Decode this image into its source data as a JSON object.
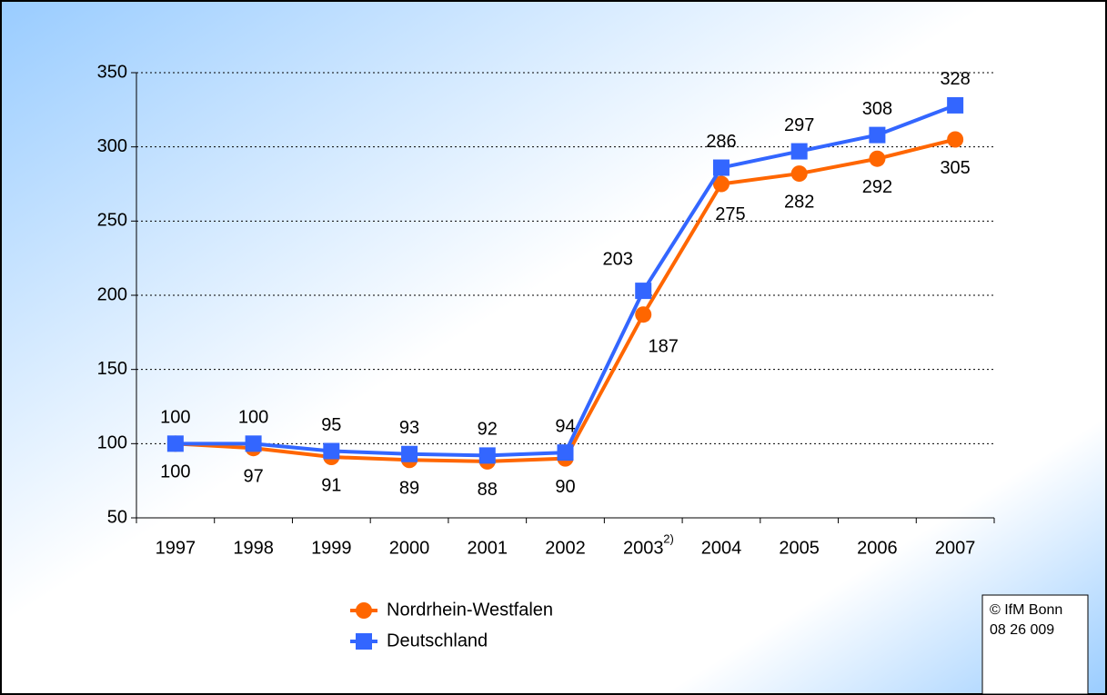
{
  "chart_data": {
    "type": "line",
    "categories": [
      "1997",
      "1998",
      "1999",
      "2000",
      "2001",
      "2002",
      "2003",
      "2004",
      "2005",
      "2006",
      "2007"
    ],
    "category_superscripts": [
      null,
      null,
      null,
      null,
      null,
      null,
      "2)",
      null,
      null,
      null,
      null
    ],
    "series": [
      {
        "name": "Nordrhein-Westfalen",
        "color": "#ff6600",
        "marker": "circle",
        "values": [
          100,
          97,
          91,
          89,
          88,
          90,
          187,
          275,
          282,
          292,
          305
        ]
      },
      {
        "name": "Deutschland",
        "color": "#3366ff",
        "marker": "square",
        "values": [
          100,
          100,
          95,
          93,
          92,
          94,
          203,
          286,
          297,
          308,
          328
        ]
      }
    ],
    "ylim": [
      50,
      350
    ],
    "yticks": [
      50,
      100,
      150,
      200,
      250,
      300,
      350
    ],
    "grid": true,
    "legend": "bottom",
    "copyright": [
      "© IfM Bonn",
      "08 26 009"
    ]
  }
}
